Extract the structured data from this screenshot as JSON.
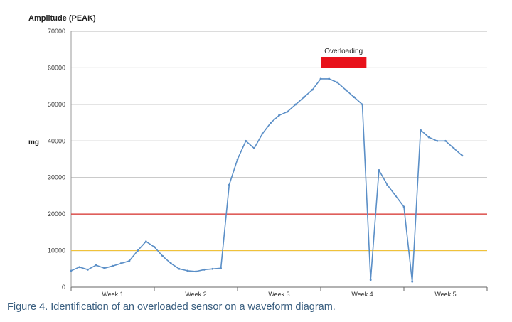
{
  "caption": "Figure 4. Identification  of an overloaded sensor on a waveform diagram.",
  "chart_data": {
    "type": "line",
    "title": "Amplitude (PEAK)",
    "ylabel": "mg",
    "xlabel": "",
    "ylim": [
      0,
      70000
    ],
    "yticks": [
      0,
      10000,
      20000,
      30000,
      40000,
      50000,
      60000,
      70000
    ],
    "grid": "horizontal",
    "x_domain": [
      0,
      5
    ],
    "x_categories": [
      "Week 1",
      "Week 2",
      "Week 3",
      "Week 4",
      "Week 5"
    ],
    "series_color": "#5b8fc7",
    "reference_lines": [
      {
        "value": 20000,
        "color": "#d9302c"
      },
      {
        "value": 10000,
        "color": "#f0c23a"
      }
    ],
    "annotation": {
      "text": "Overloading",
      "x_range": [
        3.0,
        3.55
      ],
      "y_range": [
        60000,
        63000
      ],
      "color": "#e8111a"
    },
    "series": [
      {
        "x": [
          0.0,
          0.1,
          0.2,
          0.3,
          0.4,
          0.5,
          0.6,
          0.7,
          0.8,
          0.9,
          1.0,
          1.1,
          1.2,
          1.3,
          1.4,
          1.5,
          1.6,
          1.7,
          1.8,
          1.9,
          2.0,
          2.1,
          2.2,
          2.3,
          2.4,
          2.5,
          2.6,
          2.7,
          2.8,
          2.9,
          3.0,
          3.1,
          3.2,
          3.3,
          3.4,
          3.5,
          3.6,
          3.7,
          3.8,
          3.9,
          4.0,
          4.1,
          4.2,
          4.3,
          4.4,
          4.5,
          4.6,
          4.7
        ],
        "y": [
          4500,
          5500,
          4800,
          6000,
          5200,
          5800,
          6500,
          7200,
          10000,
          12500,
          11000,
          8500,
          6500,
          5000,
          4500,
          4300,
          4800,
          5000,
          5200,
          28000,
          35000,
          40000,
          38000,
          42000,
          45000,
          47000,
          48000,
          50000,
          52000,
          54000,
          57000,
          57000,
          56000,
          54000,
          52000,
          50000,
          2000,
          32000,
          28000,
          25000,
          22000,
          1500,
          43000,
          41000,
          40000,
          40000,
          38000,
          36000
        ]
      }
    ]
  }
}
